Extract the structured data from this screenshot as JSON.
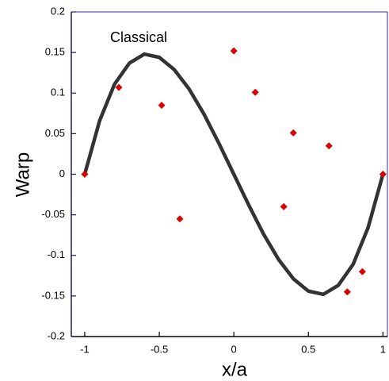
{
  "chart_data": {
    "type": "line",
    "annotation": "Classical",
    "xlabel": "x/a",
    "ylabel": "Warp",
    "xlim": [
      -1.09,
      1.03
    ],
    "ylim": [
      -0.2,
      0.2
    ],
    "xticks": [
      -1,
      -0.5,
      0,
      0.5,
      1
    ],
    "yticks": [
      0.2,
      0.15,
      0.1,
      0.05,
      0,
      -0.05,
      -0.1,
      -0.15,
      -0.2
    ],
    "series": [
      {
        "type": "line",
        "color": "#333333",
        "x": [
          -1,
          -0.9,
          -0.8,
          -0.7,
          -0.6,
          -0.5,
          -0.4,
          -0.3,
          -0.2,
          -0.1,
          0,
          0.1,
          0.2,
          0.3,
          0.4,
          0.5,
          0.6,
          0.7,
          0.8,
          0.9,
          1
        ],
        "values": [
          0,
          0.066,
          0.111,
          0.137,
          0.148,
          0.144,
          0.129,
          0.105,
          0.074,
          0.038,
          0,
          -0.038,
          -0.074,
          -0.105,
          -0.129,
          -0.144,
          -0.148,
          -0.137,
          -0.111,
          -0.066,
          0
        ]
      },
      {
        "type": "scatter",
        "color": "#dd0000",
        "x": [
          -1,
          -0.771,
          -0.484,
          -0.362,
          0,
          0.144,
          0.335,
          0.399,
          0.638,
          0.761,
          0.862,
          1
        ],
        "values": [
          0,
          0.107,
          0.085,
          -0.055,
          0.152,
          0.101,
          -0.04,
          0.051,
          0.035,
          -0.145,
          -0.12,
          0
        ]
      }
    ]
  }
}
